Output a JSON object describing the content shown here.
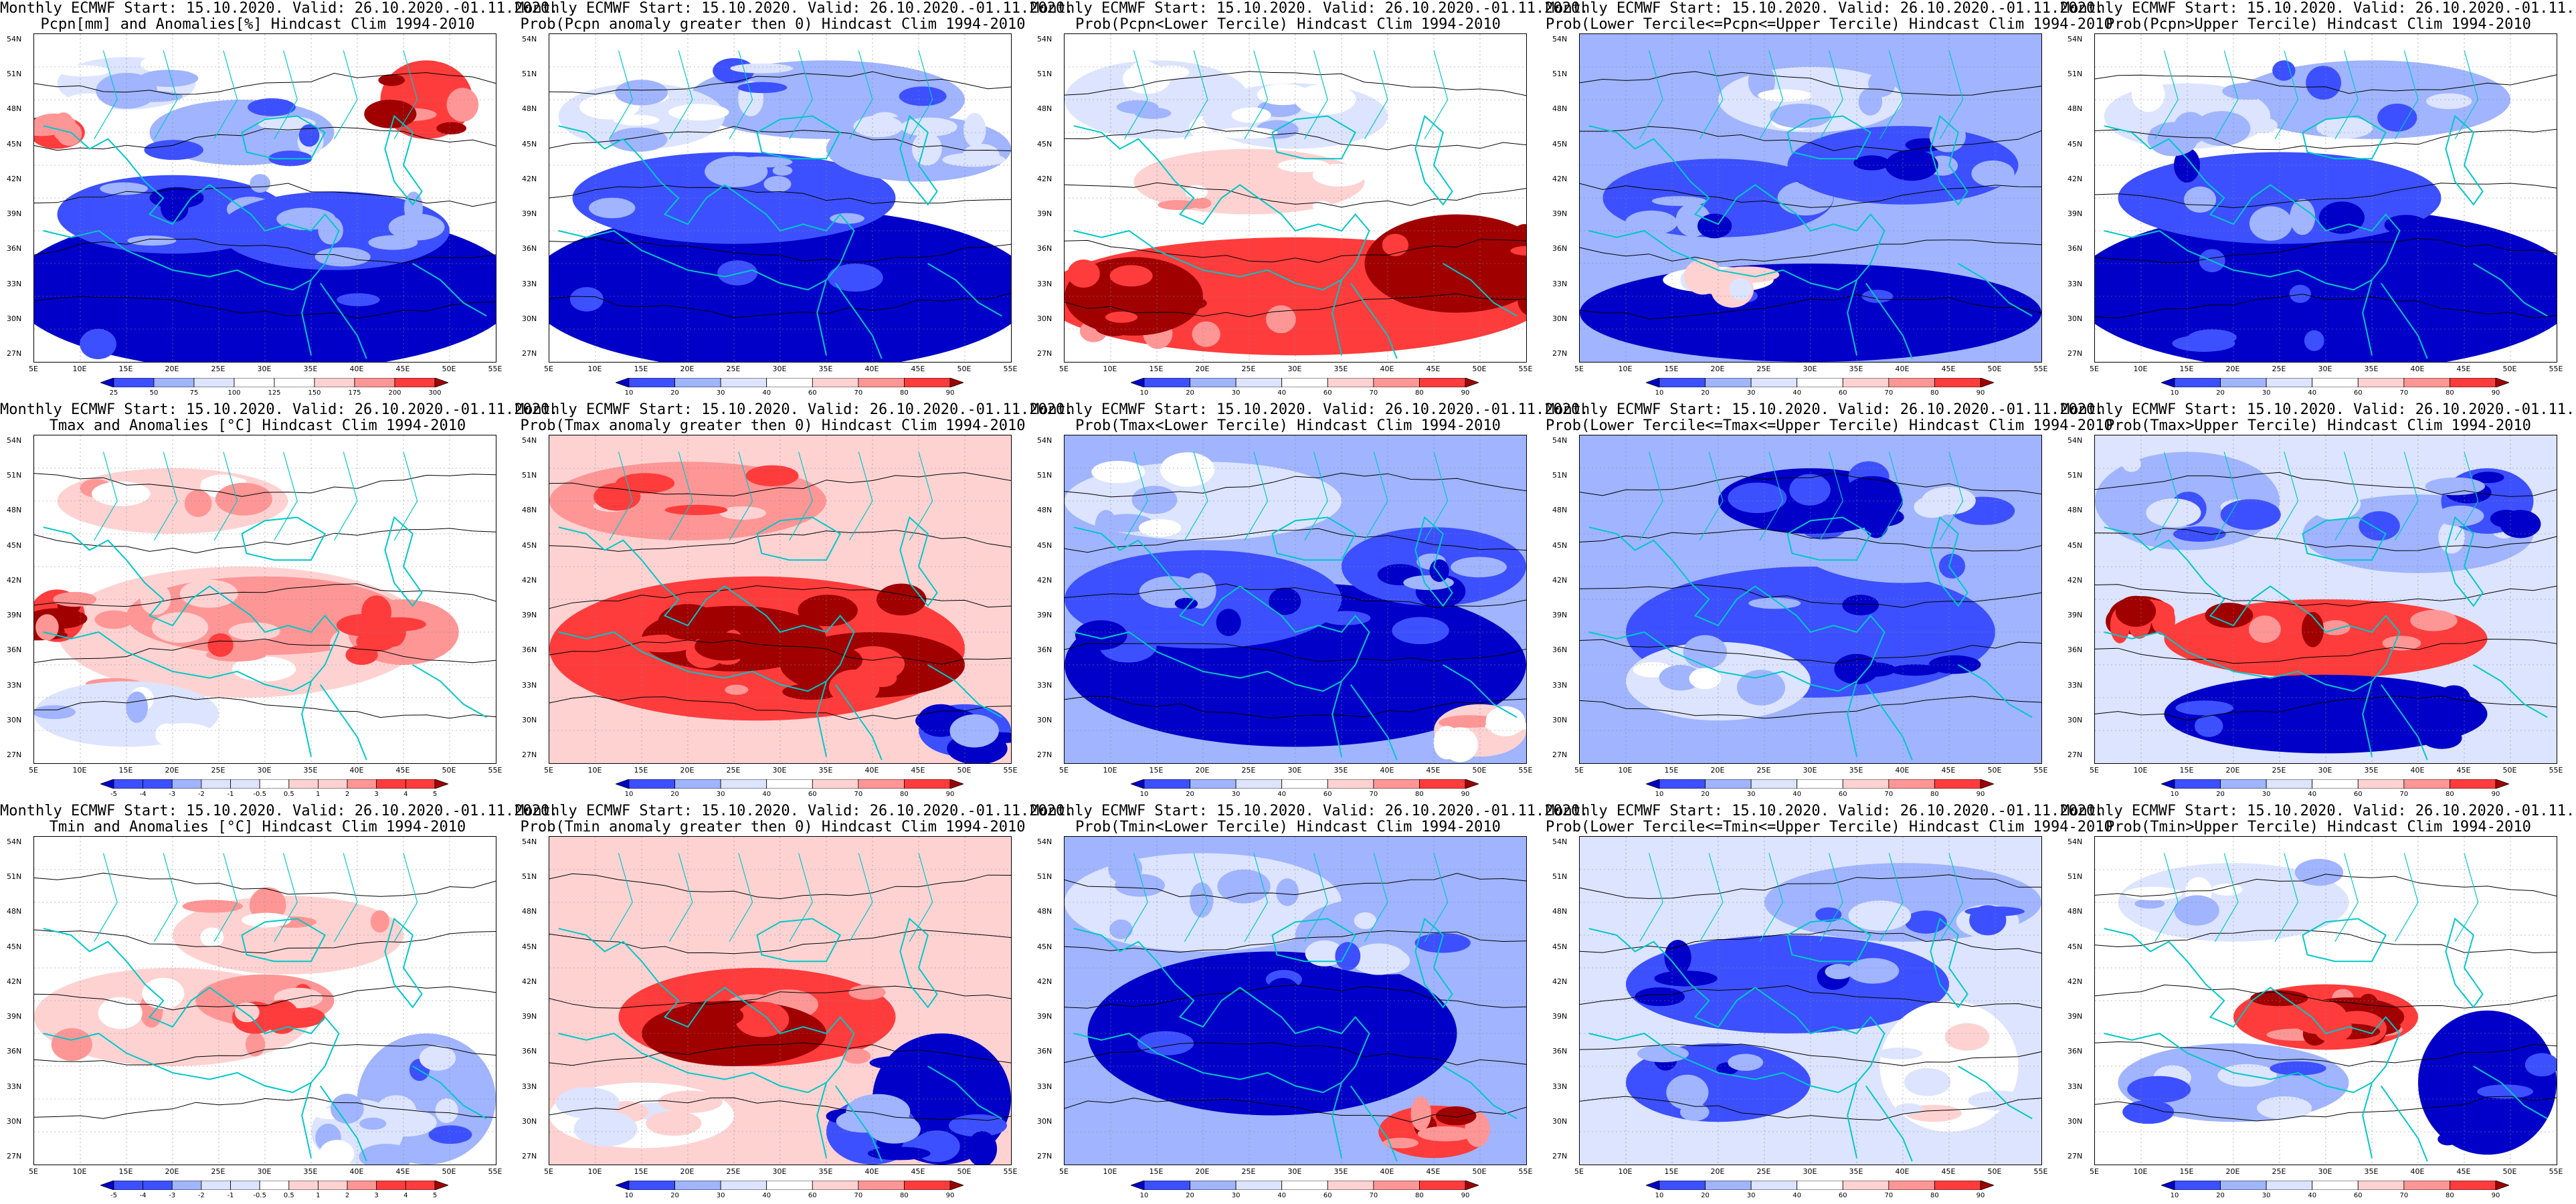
{
  "figure": {
    "common_title": "Monthly ECMWF Start: 15.10.2020. Valid: 26.10.2020.-01.11.2020.",
    "lat_ticks": [
      "54N",
      "51N",
      "48N",
      "45N",
      "42N",
      "39N",
      "36N",
      "33N",
      "30N",
      "27N"
    ],
    "lon_ticks": [
      "5E",
      "10E",
      "15E",
      "20E",
      "25E",
      "30E",
      "35E",
      "40E",
      "45E",
      "50E",
      "55E"
    ],
    "colors": {
      "dark_blue": "#0000c8",
      "mid_blue": "#3c50ff",
      "light_blue": "#a0b4ff",
      "pale_blue": "#dce4ff",
      "white": "#ffffff",
      "pale_red": "#ffd2d2",
      "light_red": "#ff9696",
      "mid_red": "#ff3c3c",
      "dark_red": "#a00000",
      "coast": "#00c8c8",
      "contour": "#000000"
    }
  },
  "panels": [
    {
      "title": "Pcpn[mm] and Anomalies[%] Hindcast Clim 1994-2010",
      "colorbar": [
        "25",
        "50",
        "75",
        "100",
        "125",
        "150",
        "175",
        "200",
        "300"
      ],
      "theme": "pcpn-anom"
    },
    {
      "title": "Prob(Pcpn anomaly greater then 0) Hindcast Clim 1994-2010",
      "colorbar": [
        "10",
        "20",
        "30",
        "40",
        "60",
        "70",
        "80",
        "90"
      ],
      "theme": "pcpn-pos"
    },
    {
      "title": "Prob(Pcpn<Lower Tercile) Hindcast Clim 1994-2010",
      "colorbar": [
        "10",
        "20",
        "30",
        "40",
        "60",
        "70",
        "80",
        "90"
      ],
      "theme": "pcpn-low"
    },
    {
      "title": "Prob(Lower Tercile<=Pcpn<=Upper Tercile) Hindcast Clim 1994-2010",
      "colorbar": [
        "10",
        "20",
        "30",
        "40",
        "60",
        "70",
        "80",
        "90"
      ],
      "theme": "pcpn-mid"
    },
    {
      "title": "Prob(Pcpn>Upper Tercile) Hindcast Clim 1994-2010",
      "colorbar": [
        "10",
        "20",
        "30",
        "40",
        "60",
        "70",
        "80",
        "90"
      ],
      "theme": "pcpn-up"
    },
    {
      "title": "Tmax and Anomalies [°C] Hindcast Clim 1994-2010",
      "colorbar": [
        "-5",
        "-4",
        "-3",
        "-2",
        "-1",
        "-0.5",
        "0.5",
        "1",
        "2",
        "3",
        "4",
        "5"
      ],
      "theme": "tmax-anom"
    },
    {
      "title": "Prob(Tmax anomaly greater then 0) Hindcast Clim 1994-2010",
      "colorbar": [
        "10",
        "20",
        "30",
        "40",
        "60",
        "70",
        "80",
        "90"
      ],
      "theme": "tmax-pos"
    },
    {
      "title": "Prob(Tmax<Lower Tercile) Hindcast Clim 1994-2010",
      "colorbar": [
        "10",
        "20",
        "30",
        "40",
        "60",
        "70",
        "80",
        "90"
      ],
      "theme": "tmax-low"
    },
    {
      "title": "Prob(Lower Tercile<=Tmax<=Upper Tercile) Hindcast Clim 1994-2010",
      "colorbar": [
        "10",
        "20",
        "30",
        "40",
        "60",
        "70",
        "80",
        "90"
      ],
      "theme": "tmax-mid"
    },
    {
      "title": "Prob(Tmax>Upper Tercile) Hindcast Clim 1994-2010",
      "colorbar": [
        "10",
        "20",
        "30",
        "40",
        "60",
        "70",
        "80",
        "90"
      ],
      "theme": "tmax-up"
    },
    {
      "title": "Tmin and Anomalies [°C] Hindcast Clim 1994-2010",
      "colorbar": [
        "-5",
        "-4",
        "-3",
        "-2",
        "-1",
        "-0.5",
        "0.5",
        "1",
        "2",
        "3",
        "4",
        "5"
      ],
      "theme": "tmin-anom"
    },
    {
      "title": "Prob(Tmin anomaly greater then 0) Hindcast Clim 1994-2010",
      "colorbar": [
        "10",
        "20",
        "30",
        "40",
        "60",
        "70",
        "80",
        "90"
      ],
      "theme": "tmin-pos"
    },
    {
      "title": "Prob(Tmin<Lower Tercile) Hindcast Clim 1994-2010",
      "colorbar": [
        "10",
        "20",
        "30",
        "40",
        "60",
        "70",
        "80",
        "90"
      ],
      "theme": "tmin-low"
    },
    {
      "title": "Prob(Lower Tercile<=Tmin<=Upper Tercile) Hindcast Clim 1994-2010",
      "colorbar": [
        "10",
        "20",
        "30",
        "40",
        "60",
        "70",
        "80",
        "90"
      ],
      "theme": "tmin-mid"
    },
    {
      "title": "Prob(Tmin>Upper Tercile) Hindcast Clim 1994-2010",
      "colorbar": [
        "10",
        "20",
        "30",
        "40",
        "60",
        "70",
        "80",
        "90"
      ],
      "theme": "tmin-up"
    }
  ]
}
